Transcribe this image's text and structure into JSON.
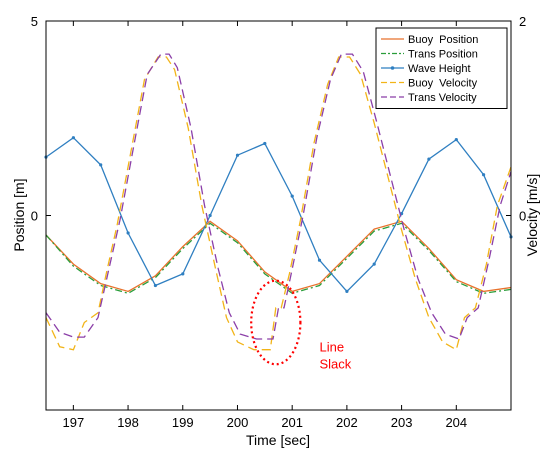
{
  "chart_data": {
    "type": "line",
    "title": "",
    "xlabel": "Time [sec]",
    "ylabel_left": "Position [m]",
    "ylabel_right": "Velocity [m/s]",
    "xlim": [
      196.5,
      205.0
    ],
    "ylim_left": [
      -5,
      5
    ],
    "ylim_right": [
      -2,
      2
    ],
    "xticks": [
      "197",
      "198",
      "199",
      "200",
      "201",
      "202",
      "203",
      "204"
    ],
    "xtick_values": [
      197,
      198,
      199,
      200,
      201,
      202,
      203,
      204
    ],
    "yticks_left": [
      "5",
      "0"
    ],
    "ytick_left_values": [
      5,
      0
    ],
    "yticks_right": [
      "2",
      "0"
    ],
    "ytick_right_values": [
      2,
      0
    ],
    "grid": false,
    "legend_position": "top-right",
    "series": [
      {
        "name": "Buoy  Position",
        "axis": "left",
        "color": "#e8722c",
        "style": "solid",
        "x": [
          196.5,
          197.0,
          197.5,
          198.0,
          198.5,
          199.0,
          199.5,
          200.0,
          200.5,
          201.0,
          201.5,
          202.0,
          202.5,
          203.0,
          203.5,
          204.0,
          204.5,
          205.0
        ],
        "y": [
          -0.5,
          -1.25,
          -1.75,
          -1.95,
          -1.55,
          -0.8,
          -0.15,
          -0.65,
          -1.45,
          -1.95,
          -1.75,
          -1.05,
          -0.35,
          -0.15,
          -0.85,
          -1.65,
          -1.95,
          -1.85
        ]
      },
      {
        "name": "Trans Position",
        "axis": "left",
        "color": "#2a9d3a",
        "style": "dashdot",
        "x": [
          196.5,
          197.0,
          197.5,
          198.0,
          198.5,
          199.0,
          199.5,
          200.0,
          200.5,
          201.0,
          201.5,
          202.0,
          202.5,
          203.0,
          203.5,
          204.0,
          204.5,
          205.0
        ],
        "y": [
          -0.5,
          -1.3,
          -1.8,
          -2.0,
          -1.6,
          -0.85,
          -0.2,
          -0.7,
          -1.5,
          -2.0,
          -1.8,
          -1.1,
          -0.4,
          -0.2,
          -0.9,
          -1.7,
          -2.0,
          -1.9
        ]
      },
      {
        "name": "Wave Height",
        "axis": "left",
        "color": "#2f7fc1",
        "style": "solid-dots",
        "x": [
          196.5,
          197.0,
          197.5,
          198.0,
          198.5,
          199.0,
          199.5,
          200.0,
          200.5,
          201.0,
          201.5,
          202.0,
          202.5,
          203.0,
          203.5,
          204.0,
          204.5,
          205.0
        ],
        "y": [
          1.5,
          2.0,
          1.3,
          -0.45,
          -1.8,
          -1.5,
          0.0,
          1.55,
          1.85,
          0.5,
          -1.15,
          -1.95,
          -1.25,
          0.05,
          1.45,
          1.95,
          1.05,
          -0.55
        ]
      },
      {
        "name": "Buoy  Velocity",
        "axis": "right",
        "color": "#f2b418",
        "style": "dashed",
        "x": [
          196.5,
          196.75,
          197.0,
          197.2,
          197.45,
          197.6,
          197.8,
          198.05,
          198.3,
          198.55,
          198.7,
          198.85,
          199.1,
          199.35,
          199.6,
          199.8,
          200.0,
          200.3,
          200.6,
          200.7,
          200.8,
          200.95,
          201.15,
          201.4,
          201.65,
          201.85,
          202.05,
          202.25,
          202.5,
          202.75,
          203.0,
          203.25,
          203.5,
          203.75,
          204.0,
          204.15,
          204.35,
          204.55,
          204.75,
          205.0
        ],
        "y": [
          -1.05,
          -1.35,
          -1.38,
          -1.1,
          -1.0,
          -0.6,
          -0.1,
          0.65,
          1.4,
          1.63,
          1.63,
          1.5,
          0.9,
          0.1,
          -0.55,
          -1.05,
          -1.3,
          -1.38,
          -1.38,
          -0.95,
          -0.95,
          -0.6,
          -0.05,
          0.75,
          1.35,
          1.63,
          1.63,
          1.45,
          0.95,
          0.4,
          -0.15,
          -0.65,
          -1.05,
          -1.3,
          -1.38,
          -1.05,
          -0.95,
          -0.5,
          0.1,
          0.5
        ]
      },
      {
        "name": "Trans Velocity",
        "axis": "right",
        "color": "#8b3fa8",
        "style": "dashed",
        "x": [
          196.5,
          196.75,
          197.0,
          197.2,
          197.45,
          197.65,
          197.85,
          198.1,
          198.35,
          198.6,
          198.75,
          198.9,
          199.15,
          199.4,
          199.65,
          199.85,
          200.05,
          200.35,
          200.65,
          200.75,
          200.85,
          201.0,
          201.2,
          201.45,
          201.7,
          201.9,
          202.1,
          202.3,
          202.55,
          202.8,
          203.05,
          203.3,
          203.55,
          203.8,
          204.05,
          204.2,
          204.4,
          204.6,
          204.8,
          205.0
        ],
        "y": [
          -1.0,
          -1.2,
          -1.25,
          -1.25,
          -1.05,
          -0.55,
          -0.05,
          0.7,
          1.45,
          1.66,
          1.66,
          1.52,
          0.9,
          0.1,
          -0.55,
          -1.0,
          -1.22,
          -1.27,
          -1.27,
          -0.95,
          -0.95,
          -0.55,
          0.0,
          0.8,
          1.4,
          1.66,
          1.66,
          1.48,
          0.95,
          0.4,
          -0.15,
          -0.65,
          -1.0,
          -1.22,
          -1.27,
          -1.05,
          -0.95,
          -0.45,
          0.1,
          0.45
        ]
      }
    ],
    "annotations": [
      {
        "text_lines": [
          "Line",
          "Slack"
        ],
        "color": "#ff0000",
        "x": 201.5,
        "y_right": -1.4,
        "ellipse": {
          "cx": 200.7,
          "cy_right": -1.1,
          "rx_data": 0.45,
          "ry_data": 0.43
        }
      }
    ]
  }
}
